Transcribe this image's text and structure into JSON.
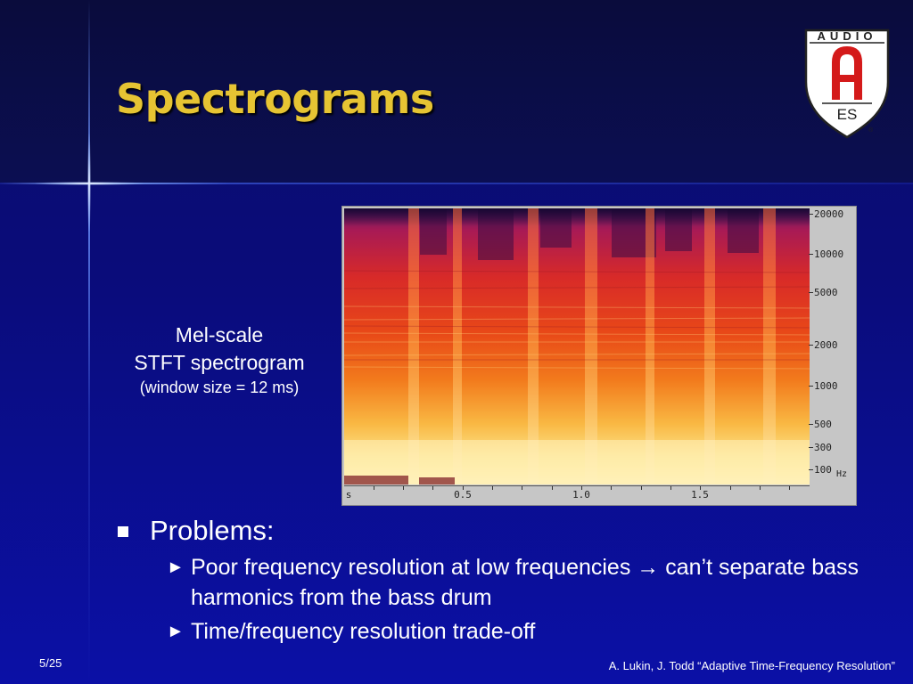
{
  "slide": {
    "title": "Spectrograms",
    "page_number": "5/25",
    "footer_citation": "A. Lukin, J. Todd “Adaptive Time-Frequency Resolution”"
  },
  "logo": {
    "top_text": "AUDIO",
    "letter": "A",
    "bottom_text": "ES",
    "registered_mark": "®",
    "colors": {
      "red": "#d41a1a",
      "shield": "#ffffff",
      "outline": "#222222"
    }
  },
  "caption": {
    "line1": "Mel-scale",
    "line2": "STFT spectrogram",
    "line3": "(window size = 12 ms)"
  },
  "spectrogram": {
    "frequency_labels": [
      "20000",
      "10000",
      "5000",
      "2000",
      "1000",
      "500",
      "300",
      "100"
    ],
    "frequency_unit": "Hz",
    "time_labels": [
      "s",
      "0.5",
      "1.0",
      "1.5"
    ]
  },
  "bullets": {
    "main": "Problems:",
    "sub": [
      {
        "marker": "►",
        "text": "Poor frequency resolution at low frequencies → can’t separate bass harmonics from the bass drum"
      },
      {
        "marker": "►",
        "text": "Time/frequency resolution trade-off"
      }
    ]
  },
  "colors": {
    "title": "#e6c433",
    "background_top": "#0a0c3c",
    "background_bottom": "#0b10a6",
    "text": "#ffffff"
  }
}
